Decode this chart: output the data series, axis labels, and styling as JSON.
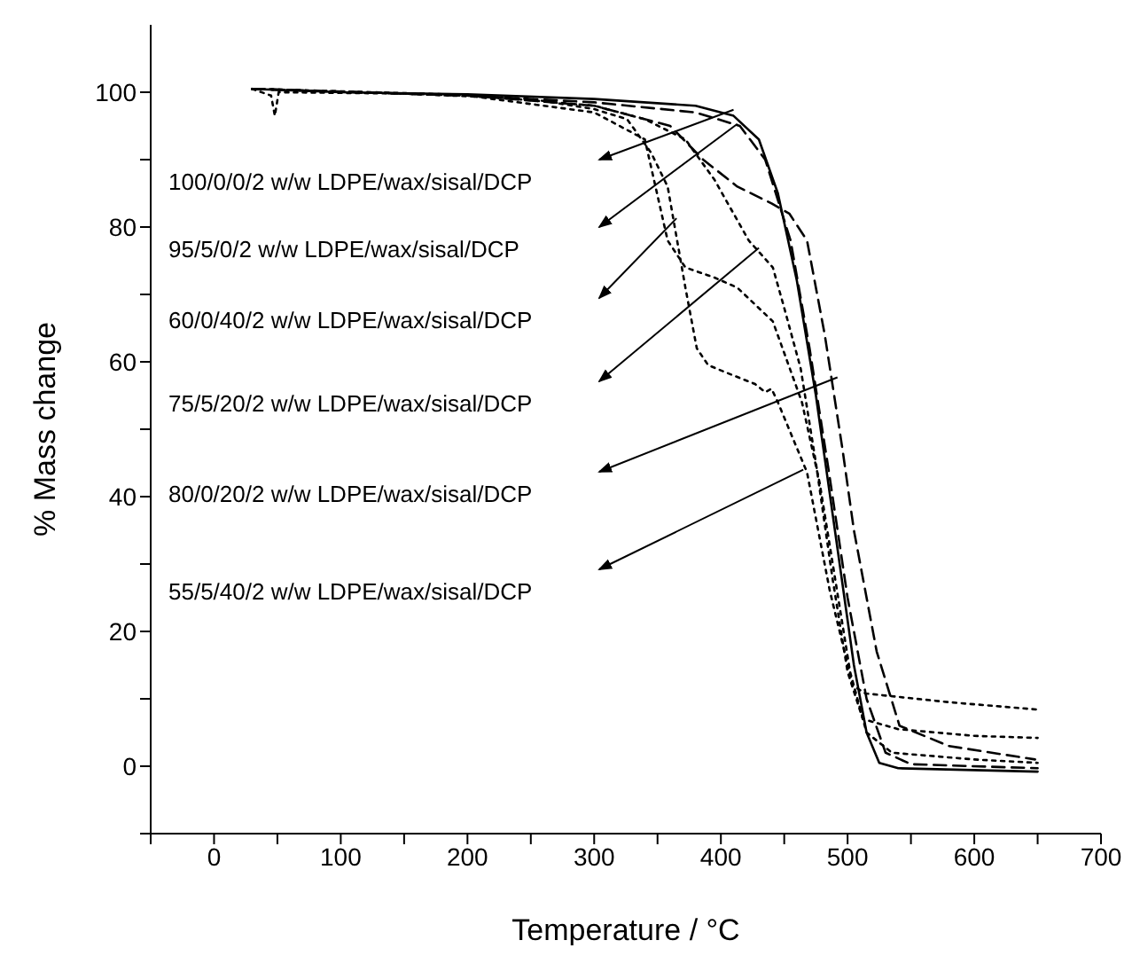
{
  "chart_data": {
    "type": "line",
    "xlabel": "Temperature / °C",
    "ylabel": "% Mass change",
    "xlim": [
      -50,
      700
    ],
    "ylim": [
      -10,
      110
    ],
    "xticks": [
      {
        "value": -50,
        "label": null
      },
      0,
      {
        "value": 50,
        "label": null
      },
      100,
      {
        "value": 150,
        "label": null
      },
      200,
      {
        "value": 250,
        "label": null
      },
      300,
      {
        "value": 350,
        "label": null
      },
      400,
      {
        "value": 450,
        "label": null
      },
      500,
      {
        "value": 550,
        "label": null
      },
      600,
      {
        "value": 650,
        "label": null
      },
      700
    ],
    "yticks": [
      {
        "value": -10,
        "label": null
      },
      0,
      {
        "value": 10,
        "label": null
      },
      20,
      {
        "value": 30,
        "label": null
      },
      40,
      {
        "value": 50,
        "label": null
      },
      60,
      {
        "value": 70,
        "label": null
      },
      80,
      {
        "value": 90,
        "label": null
      },
      100
    ],
    "grid": false,
    "legend": false,
    "marker": "none",
    "series": [
      {
        "color": "#000000",
        "line_style": "solid",
        "x": [
          30,
          100,
          200,
          300,
          380,
          410,
          430,
          445,
          460,
          475,
          490,
          505,
          515,
          525,
          540,
          650
        ],
        "values": [
          100.5,
          100,
          99.7,
          99,
          98,
          96.5,
          93,
          85,
          72,
          55,
          35,
          15,
          5,
          0.5,
          -0.3,
          -0.8
        ]
      },
      {
        "color": "#000000",
        "line_style": "dashed",
        "x": [
          30,
          200,
          300,
          380,
          415,
          435,
          455,
          470,
          485,
          500,
          515,
          530,
          550,
          650
        ],
        "values": [
          100.5,
          99.5,
          98.5,
          97,
          95,
          90,
          78,
          62,
          44,
          25,
          10,
          2,
          0.3,
          -0.3
        ]
      },
      {
        "color": "#000000",
        "line_style": "dashed",
        "x": [
          30,
          200,
          300,
          360,
          386,
          413,
          440,
          454,
          468,
          482,
          496,
          505,
          523,
          541,
          580,
          648
        ],
        "values": [
          100.5,
          99.5,
          98,
          95,
          90,
          86,
          83.5,
          82,
          78,
          64,
          47,
          35,
          17,
          6,
          3,
          1
        ]
      },
      {
        "color": "#000000",
        "line_style": "dotted",
        "x": [
          30,
          45,
          48,
          51,
          150,
          250,
          300,
          326,
          345,
          358,
          372,
          381,
          390,
          403,
          427,
          435,
          440,
          445,
          468,
          486,
          504,
          514,
          580,
          650
        ],
        "values": [
          100.5,
          99.5,
          96.5,
          100,
          99.8,
          99,
          97.5,
          96,
          91,
          86,
          71,
          62,
          59.5,
          58.5,
          56.7,
          55.5,
          56,
          54,
          43.6,
          26,
          12,
          10.8,
          9.5,
          8.4
        ]
      },
      {
        "color": "#000000",
        "line_style": "dotted",
        "x": [
          30,
          200,
          300,
          340,
          372,
          395,
          413,
          422,
          441,
          450,
          463,
          475,
          488,
          500,
          512,
          540,
          600,
          650
        ],
        "values": [
          100.5,
          99.6,
          98,
          96,
          93,
          87,
          81,
          78,
          74,
          68,
          59,
          45,
          28,
          14,
          7,
          5.5,
          4.5,
          4.2
        ]
      },
      {
        "color": "#000000",
        "line_style": "dotted",
        "x": [
          30,
          200,
          300,
          340,
          358,
          372,
          395,
          413,
          441,
          464,
          478,
          490,
          502,
          515,
          535,
          600,
          650
        ],
        "values": [
          100.5,
          99.5,
          97,
          93,
          78,
          74,
          72.5,
          71,
          66,
          54,
          42,
          28,
          14,
          5,
          2,
          1,
          0.5
        ]
      }
    ],
    "annotations": [
      "100/0/0/2 w/w LDPE/wax/sisal/DCP",
      "95/5/0/2 w/w LDPE/wax/sisal/DCP",
      "60/0/40/2 w/w LDPE/wax/sisal/DCP",
      "75/5/20/2 w/w LDPE/wax/sisal/DCP",
      "80/0/20/2 w/w LDPE/wax/sisal/DCP",
      "55/5/40/2 w/w LDPE/wax/sisal/DCP"
    ]
  }
}
